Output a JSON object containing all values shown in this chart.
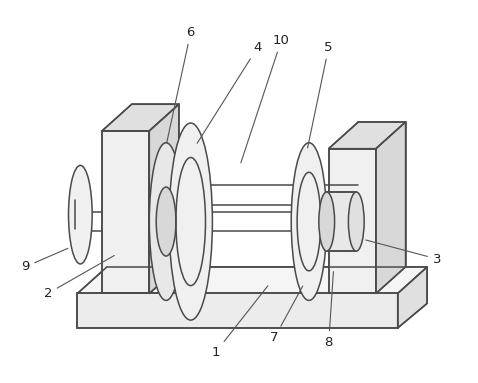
{
  "bg_color": "#ffffff",
  "line_color": "#4a4a4a",
  "line_width": 1.1,
  "fig_width": 4.78,
  "fig_height": 3.83,
  "dpi": 100
}
